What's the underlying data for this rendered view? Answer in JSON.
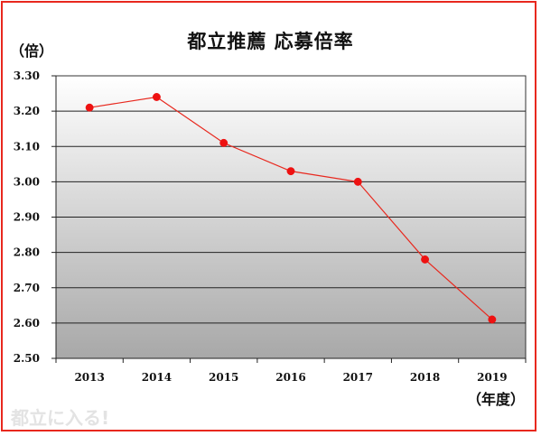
{
  "title": "都立推薦 応募倍率",
  "y_unit_label": "（倍）",
  "x_unit_label": "（年度）",
  "watermark": "都立に入る!",
  "colors": {
    "frame": "#e8281e",
    "line": "#e8281e",
    "marker": "#ee1111",
    "plot_gradient_top": "#ffffff",
    "plot_gradient_bottom": "#a8a8a8"
  },
  "chart_data": {
    "type": "line",
    "title": "都立推薦 応募倍率",
    "xlabel": "（年度）",
    "ylabel": "（倍）",
    "categories": [
      "2013",
      "2014",
      "2015",
      "2016",
      "2017",
      "2018",
      "2019"
    ],
    "series": [
      {
        "values": [
          3.21,
          3.24,
          3.11,
          3.03,
          3.0,
          2.78,
          2.61
        ]
      }
    ],
    "ylim": [
      2.5,
      3.3
    ],
    "yticks": [
      "2.50",
      "2.60",
      "2.70",
      "2.80",
      "2.90",
      "3.00",
      "3.10",
      "3.20",
      "3.30"
    ],
    "grid": true,
    "legend": "none"
  }
}
